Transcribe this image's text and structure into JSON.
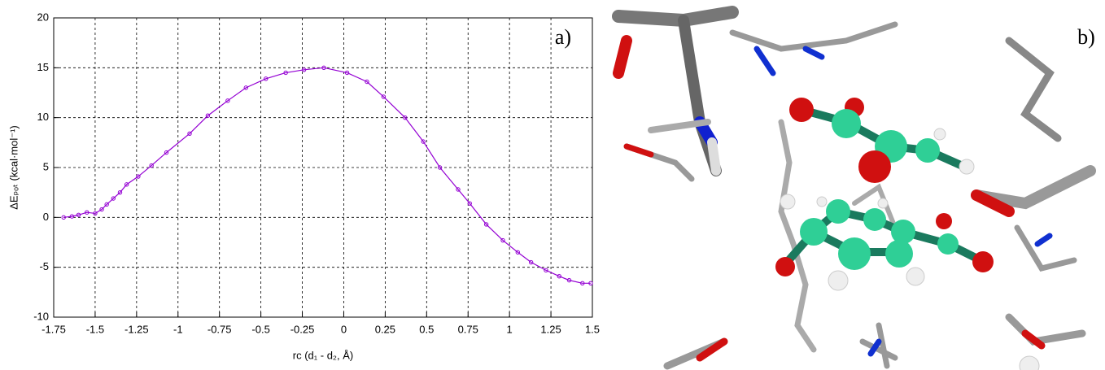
{
  "chart_data": {
    "type": "line",
    "x_label": "rc (d₁ - d₂, Å)",
    "y_label": "ΔEₚₒₜ (kcal·mol⁻¹)",
    "annotations": [
      "a)"
    ],
    "xlim": [
      -1.75,
      1.5
    ],
    "xticks": [
      -1.75,
      -1.5,
      -1.25,
      -1,
      -0.75,
      -0.5,
      -0.25,
      0,
      0.25,
      0.5,
      0.75,
      1,
      1.25,
      1.5
    ],
    "ylim": [
      -10,
      20
    ],
    "yticks": [
      -10,
      -5,
      0,
      5,
      10,
      15,
      20
    ],
    "grid": true,
    "series": [
      {
        "color": "#9400d3",
        "x": [
          -1.69,
          -1.64,
          -1.6,
          -1.55,
          -1.5,
          -1.46,
          -1.43,
          -1.39,
          -1.35,
          -1.31,
          -1.24,
          -1.16,
          -1.07,
          -0.93,
          -0.82,
          -0.7,
          -0.59,
          -0.47,
          -0.35,
          -0.24,
          -0.12,
          0.02,
          0.14,
          0.24,
          0.37,
          0.48,
          0.58,
          0.69,
          0.76,
          0.86,
          0.96,
          1.05,
          1.13,
          1.22,
          1.3,
          1.36,
          1.44,
          1.49
        ],
        "values": [
          0.0,
          0.1,
          0.25,
          0.5,
          0.4,
          0.8,
          1.3,
          1.9,
          2.5,
          3.3,
          4.1,
          5.2,
          6.5,
          8.4,
          10.2,
          11.7,
          13.0,
          13.9,
          14.5,
          14.8,
          15.0,
          14.5,
          13.6,
          12.1,
          10.0,
          7.6,
          5.0,
          2.8,
          1.4,
          -0.7,
          -2.3,
          -3.5,
          -4.5,
          -5.3,
          -5.9,
          -6.3,
          -6.6,
          -6.6
        ]
      }
    ]
  },
  "image": {
    "label": "b)"
  }
}
